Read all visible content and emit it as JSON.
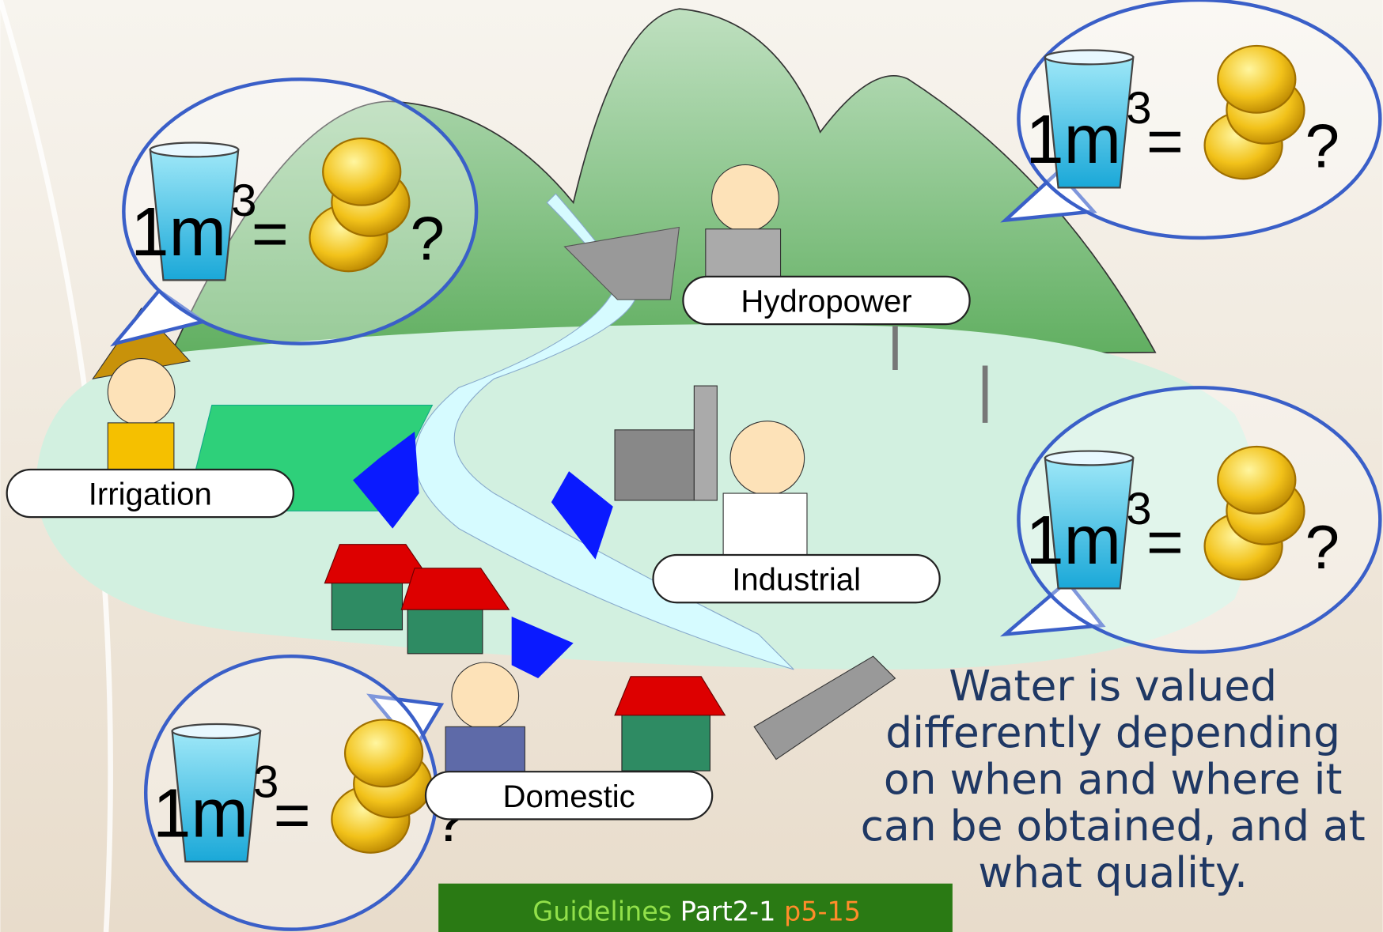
{
  "bubbles": [
    {
      "unit": "1m",
      "exponent": "3",
      "equals": "=",
      "question": "?"
    },
    {
      "unit": "1m",
      "exponent": "3",
      "equals": "=",
      "question": "?"
    },
    {
      "unit": "1m",
      "exponent": "3",
      "equals": "=",
      "question": "?"
    },
    {
      "unit": "1m",
      "exponent": "3",
      "equals": "=",
      "question": "?"
    }
  ],
  "labels": [
    "Irrigation",
    "Hydropower",
    "Industrial",
    "Domestic"
  ],
  "caption": [
    "Water is valued",
    "differently depending",
    "on when and where it",
    "can be obtained, and at",
    "what quality."
  ],
  "footer": {
    "source": "Guidelines",
    "part": "Part2-1",
    "page": "p5-15"
  }
}
